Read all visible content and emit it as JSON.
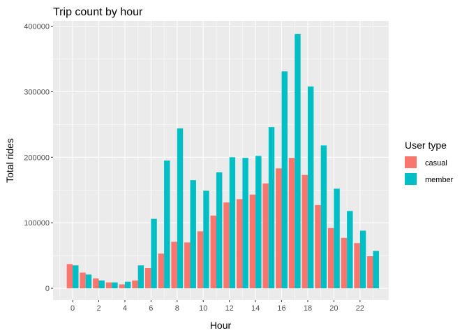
{
  "chart_data": {
    "type": "bar",
    "title": "Trip count by hour",
    "xlabel": "Hour",
    "ylabel": "Total rides",
    "x": [
      0,
      1,
      2,
      3,
      4,
      5,
      6,
      7,
      8,
      9,
      10,
      11,
      12,
      13,
      14,
      15,
      16,
      17,
      18,
      19,
      20,
      21,
      22,
      23
    ],
    "x_ticks": [
      0,
      2,
      4,
      6,
      8,
      10,
      12,
      14,
      16,
      18,
      20,
      22
    ],
    "y_ticks": [
      0,
      100000,
      200000,
      300000,
      400000
    ],
    "ylim": [
      -18000,
      408000
    ],
    "xlim": [
      -1.5,
      24.2
    ],
    "grid": true,
    "legend": {
      "title": "User type",
      "position": "right"
    },
    "series": [
      {
        "name": "casual",
        "color": "#F8766D",
        "values": [
          37000,
          24000,
          15000,
          9000,
          6000,
          12000,
          31000,
          53000,
          71000,
          70000,
          87000,
          111000,
          131000,
          136000,
          143000,
          160000,
          183000,
          199000,
          173000,
          127000,
          92000,
          77000,
          69000,
          49000
        ]
      },
      {
        "name": "member",
        "color": "#00BFC4",
        "values": [
          35000,
          21000,
          12000,
          9000,
          10000,
          35000,
          106000,
          195000,
          244000,
          165000,
          149000,
          177000,
          200000,
          199000,
          202000,
          246000,
          331000,
          388000,
          308000,
          218000,
          152000,
          118000,
          88000,
          57000
        ]
      }
    ]
  }
}
